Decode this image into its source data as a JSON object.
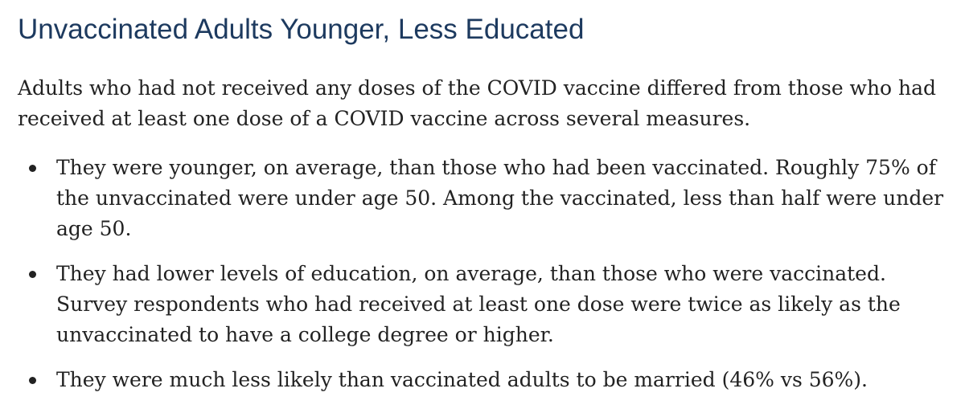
{
  "title": "Unvaccinated Adults Younger, Less Educated",
  "intro": "Adults who had not received any doses of the COVID vaccine differed from those who had received at least one dose of a COVID vaccine across several measures.",
  "bullets": [
    "They were younger, on average, than those who had been vaccinated. Roughly 75% of the unvaccinated were under age 50. Among the vaccinated, less than half were under age 50.",
    "They had lower levels of education, on average, than those who were vaccinated. Survey respondents who had received at least one dose were twice as likely as the unvaccinated to have a college degree or higher.",
    "They were much less likely than vaccinated adults to be married (46% vs 56%)."
  ],
  "colors": {
    "title": "#1d3a5f",
    "body_text": "#222222",
    "background": "#ffffff"
  }
}
